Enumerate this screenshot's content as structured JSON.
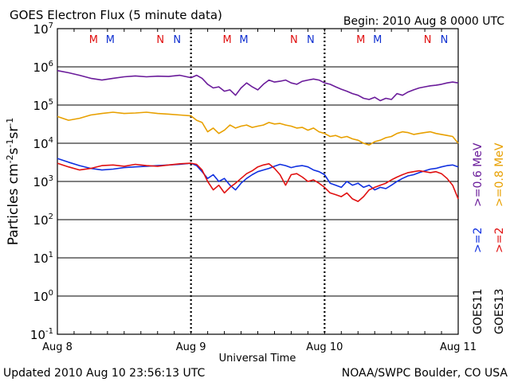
{
  "header": {
    "title": "GOES Electron Flux (5 minute data)",
    "begin": "Begin: 2010 Aug 8 0000 UTC"
  },
  "footer": {
    "updated": "Updated 2010 Aug 10 23:56:13 UTC",
    "credit": "NOAA/SWPC Boulder, CO USA"
  },
  "colors": {
    "purple": "#6a1b9a",
    "orange": "#e8a000",
    "blue": "#1030e0",
    "red": "#e01010",
    "marker_red": "#e01010",
    "marker_blue": "#1030d0"
  },
  "chart_data": {
    "type": "line",
    "title": "GOES Electron Flux (5 minute data)",
    "xlabel": "Universal Time",
    "ylabel": "Particles cm-2s-1sr-1",
    "yscale": "log",
    "ylim": [
      0.1,
      10000000
    ],
    "xlim": [
      0,
      72
    ],
    "x_unit": "hours since 2010 Aug 8 0000 UTC",
    "x_ticks": [
      {
        "x": 0,
        "label": "Aug 8"
      },
      {
        "x": 24,
        "label": "Aug 9"
      },
      {
        "x": 48,
        "label": "Aug 10"
      },
      {
        "x": 72,
        "label": "Aug 11"
      }
    ],
    "y_ticks": [
      {
        "value": 10000000,
        "base": "10",
        "exp": "7"
      },
      {
        "value": 1000000,
        "base": "10",
        "exp": "6"
      },
      {
        "value": 100000,
        "base": "10",
        "exp": "5"
      },
      {
        "value": 10000,
        "base": "10",
        "exp": "4"
      },
      {
        "value": 1000,
        "base": "10",
        "exp": "3"
      },
      {
        "value": 100,
        "base": "10",
        "exp": "2"
      },
      {
        "value": 10,
        "base": "10",
        "exp": "1"
      },
      {
        "value": 1,
        "base": "10",
        "exp": "0"
      },
      {
        "value": 0.1,
        "base": "10",
        "exp": "-1"
      }
    ],
    "threshold": 1000,
    "day_markers": [
      {
        "day": 0,
        "labels": [
          {
            "x": 6.5,
            "text": "M",
            "color": "red"
          },
          {
            "x": 9.5,
            "text": "M",
            "color": "blue"
          },
          {
            "x": 18.5,
            "text": "N",
            "color": "red"
          },
          {
            "x": 21.5,
            "text": "N",
            "color": "blue"
          }
        ]
      },
      {
        "day": 1,
        "labels": [
          {
            "x": 30.5,
            "text": "M",
            "color": "red"
          },
          {
            "x": 33.5,
            "text": "M",
            "color": "blue"
          },
          {
            "x": 42.5,
            "text": "N",
            "color": "red"
          },
          {
            "x": 45.5,
            "text": "N",
            "color": "blue"
          }
        ]
      },
      {
        "day": 2,
        "labels": [
          {
            "x": 54.5,
            "text": "M",
            "color": "red"
          },
          {
            "x": 57.5,
            "text": "M",
            "color": "blue"
          },
          {
            "x": 66.5,
            "text": "N",
            "color": "red"
          },
          {
            "x": 69.5,
            "text": "N",
            "color": "blue"
          }
        ]
      }
    ],
    "series": [
      {
        "name": "GOES11 >=0.6 MeV",
        "color_key": "purple",
        "x": [
          0,
          2,
          4,
          6,
          8,
          10,
          12,
          14,
          16,
          18,
          20,
          22,
          24,
          25,
          26,
          27,
          28,
          29,
          30,
          31,
          32,
          33,
          34,
          35,
          36,
          37,
          38,
          39,
          40,
          41,
          42,
          43,
          44,
          45,
          46,
          47,
          48,
          49,
          50,
          51,
          52,
          53,
          54,
          55,
          56,
          57,
          58,
          59,
          60,
          61,
          62,
          63,
          64,
          65,
          66,
          67,
          68,
          69,
          70,
          71,
          72
        ],
        "values": [
          800000,
          700000,
          600000,
          500000,
          450000,
          500000,
          550000,
          580000,
          550000,
          570000,
          560000,
          600000,
          520000,
          600000,
          500000,
          350000,
          280000,
          300000,
          230000,
          250000,
          180000,
          280000,
          380000,
          300000,
          250000,
          350000,
          450000,
          400000,
          420000,
          450000,
          380000,
          350000,
          420000,
          450000,
          480000,
          450000,
          380000,
          350000,
          300000,
          260000,
          230000,
          200000,
          180000,
          150000,
          140000,
          160000,
          130000,
          150000,
          140000,
          200000,
          180000,
          220000,
          250000,
          280000,
          300000,
          320000,
          330000,
          350000,
          380000,
          400000,
          380000
        ]
      },
      {
        "name": "GOES13 >=0.8 MeV",
        "color_key": "orange",
        "x": [
          0,
          2,
          4,
          6,
          8,
          10,
          12,
          14,
          16,
          18,
          20,
          22,
          24,
          25,
          26,
          27,
          28,
          29,
          30,
          31,
          32,
          33,
          34,
          35,
          36,
          37,
          38,
          39,
          40,
          41,
          42,
          43,
          44,
          45,
          46,
          47,
          48,
          49,
          50,
          51,
          52,
          53,
          54,
          55,
          56,
          57,
          58,
          59,
          60,
          61,
          62,
          63,
          64,
          65,
          66,
          67,
          68,
          69,
          70,
          71,
          72
        ],
        "values": [
          50000,
          40000,
          45000,
          55000,
          60000,
          65000,
          60000,
          62000,
          65000,
          60000,
          58000,
          55000,
          52000,
          40000,
          35000,
          20000,
          25000,
          18000,
          22000,
          30000,
          25000,
          28000,
          30000,
          26000,
          28000,
          30000,
          35000,
          32000,
          33000,
          30000,
          28000,
          25000,
          26000,
          22000,
          25000,
          20000,
          18000,
          15000,
          16000,
          14000,
          15000,
          13000,
          12000,
          10000,
          9000,
          11000,
          12000,
          14000,
          15000,
          18000,
          20000,
          19000,
          17000,
          18000,
          19000,
          20000,
          18000,
          17000,
          16000,
          15000,
          10000
        ]
      },
      {
        "name": "GOES11 >=2 MeV",
        "color_key": "blue",
        "x": [
          0,
          2,
          4,
          6,
          8,
          10,
          12,
          14,
          16,
          18,
          20,
          22,
          24,
          25,
          26,
          27,
          28,
          29,
          30,
          31,
          32,
          33,
          34,
          35,
          36,
          37,
          38,
          39,
          40,
          41,
          42,
          43,
          44,
          45,
          46,
          47,
          48,
          49,
          50,
          51,
          52,
          53,
          54,
          55,
          56,
          57,
          58,
          59,
          60,
          61,
          62,
          63,
          64,
          65,
          66,
          67,
          68,
          69,
          70,
          71,
          72
        ],
        "values": [
          4000,
          3200,
          2600,
          2200,
          2000,
          2100,
          2300,
          2400,
          2500,
          2600,
          2700,
          2800,
          3000,
          2600,
          1800,
          1200,
          1500,
          1000,
          1200,
          800,
          600,
          900,
          1200,
          1500,
          1800,
          2000,
          2200,
          2500,
          2800,
          2600,
          2300,
          2500,
          2600,
          2400,
          2000,
          1800,
          1500,
          900,
          800,
          700,
          1000,
          800,
          900,
          700,
          800,
          600,
          700,
          650,
          800,
          1000,
          1200,
          1400,
          1500,
          1700,
          1900,
          2100,
          2200,
          2400,
          2600,
          2700,
          2400
        ]
      },
      {
        "name": "GOES13 >=2 MeV",
        "color_key": "red",
        "x": [
          0,
          2,
          4,
          6,
          8,
          10,
          12,
          14,
          16,
          18,
          20,
          22,
          24,
          25,
          26,
          27,
          28,
          29,
          30,
          31,
          32,
          33,
          34,
          35,
          36,
          37,
          38,
          39,
          40,
          41,
          42,
          43,
          44,
          45,
          46,
          47,
          48,
          49,
          50,
          51,
          52,
          53,
          54,
          55,
          56,
          57,
          58,
          59,
          60,
          61,
          62,
          63,
          64,
          65,
          66,
          67,
          68,
          69,
          70,
          71,
          72
        ],
        "values": [
          3000,
          2400,
          2000,
          2200,
          2600,
          2700,
          2500,
          2800,
          2600,
          2500,
          2700,
          2900,
          3000,
          2800,
          2000,
          1000,
          600,
          800,
          500,
          700,
          900,
          1200,
          1600,
          1900,
          2400,
          2700,
          2900,
          2200,
          1500,
          800,
          1500,
          1600,
          1300,
          1000,
          1100,
          900,
          700,
          500,
          450,
          400,
          500,
          350,
          300,
          400,
          600,
          700,
          800,
          900,
          1100,
          1300,
          1500,
          1700,
          1800,
          1900,
          1800,
          1700,
          1800,
          1600,
          1200,
          800,
          350
        ]
      }
    ],
    "legend": {
      "right_col1_top": ">=0.6 MeV",
      "right_col1_mid": ">=2",
      "right_col1_bottom": "GOES11",
      "right_col2_top": ">=0.8 MeV",
      "right_col2_mid": ">=2",
      "right_col2_bottom": "GOES13"
    },
    "grid": "horizontal decades"
  }
}
